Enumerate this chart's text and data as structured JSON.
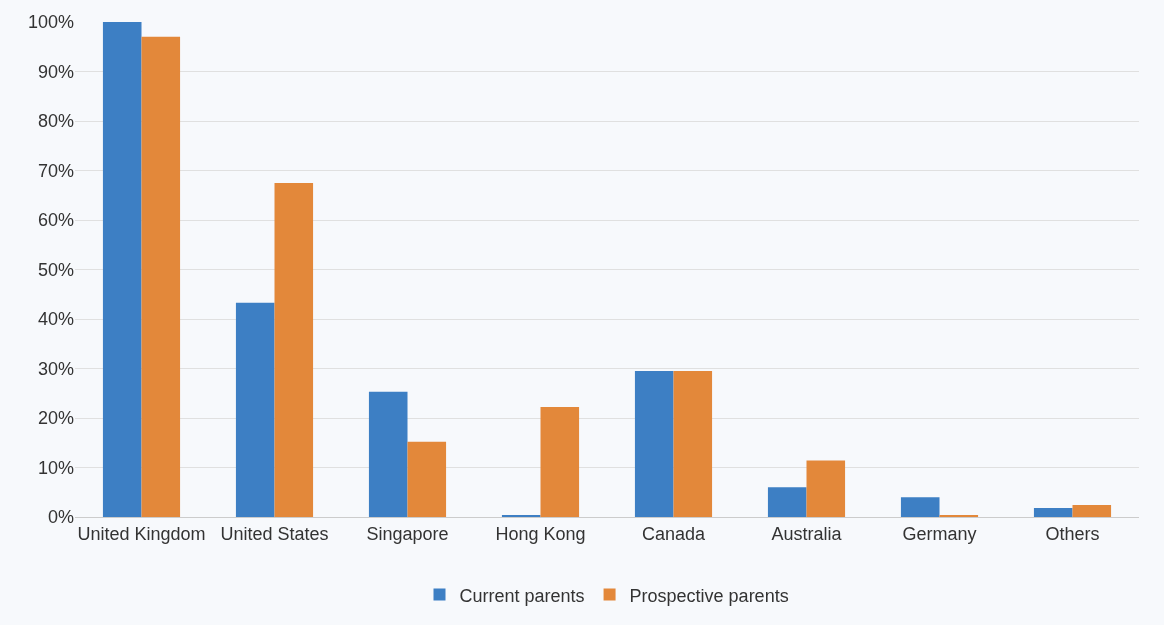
{
  "chart_data": {
    "type": "bar",
    "categories": [
      "United Kingdom",
      "United States",
      "Singapore",
      "Hong Kong",
      "Canada",
      "Australia",
      "Germany",
      "Others"
    ],
    "series": [
      {
        "name": "Current parents",
        "color": "#3d7fc4",
        "values": [
          100,
          43.3,
          25.3,
          0.4,
          29.5,
          6.0,
          4.0,
          1.8
        ]
      },
      {
        "name": "Prospective parents",
        "color": "#e3883a",
        "values": [
          97.0,
          67.5,
          15.2,
          22.2,
          29.5,
          11.4,
          0.4,
          2.4
        ]
      }
    ],
    "ylim": [
      0,
      100
    ],
    "yticks": [
      {
        "value": 0,
        "label": "0%"
      },
      {
        "value": 10,
        "label": "10%"
      },
      {
        "value": 20,
        "label": "20%"
      },
      {
        "value": 30,
        "label": "30%"
      },
      {
        "value": 40,
        "label": "40%"
      },
      {
        "value": 50,
        "label": "50%"
      },
      {
        "value": 60,
        "label": "60%"
      },
      {
        "value": 70,
        "label": "70%"
      },
      {
        "value": 80,
        "label": "80%"
      },
      {
        "value": 90,
        "label": "90%"
      },
      {
        "value": 100,
        "label": "100%"
      }
    ],
    "grid": "y",
    "legend": "bottom"
  }
}
